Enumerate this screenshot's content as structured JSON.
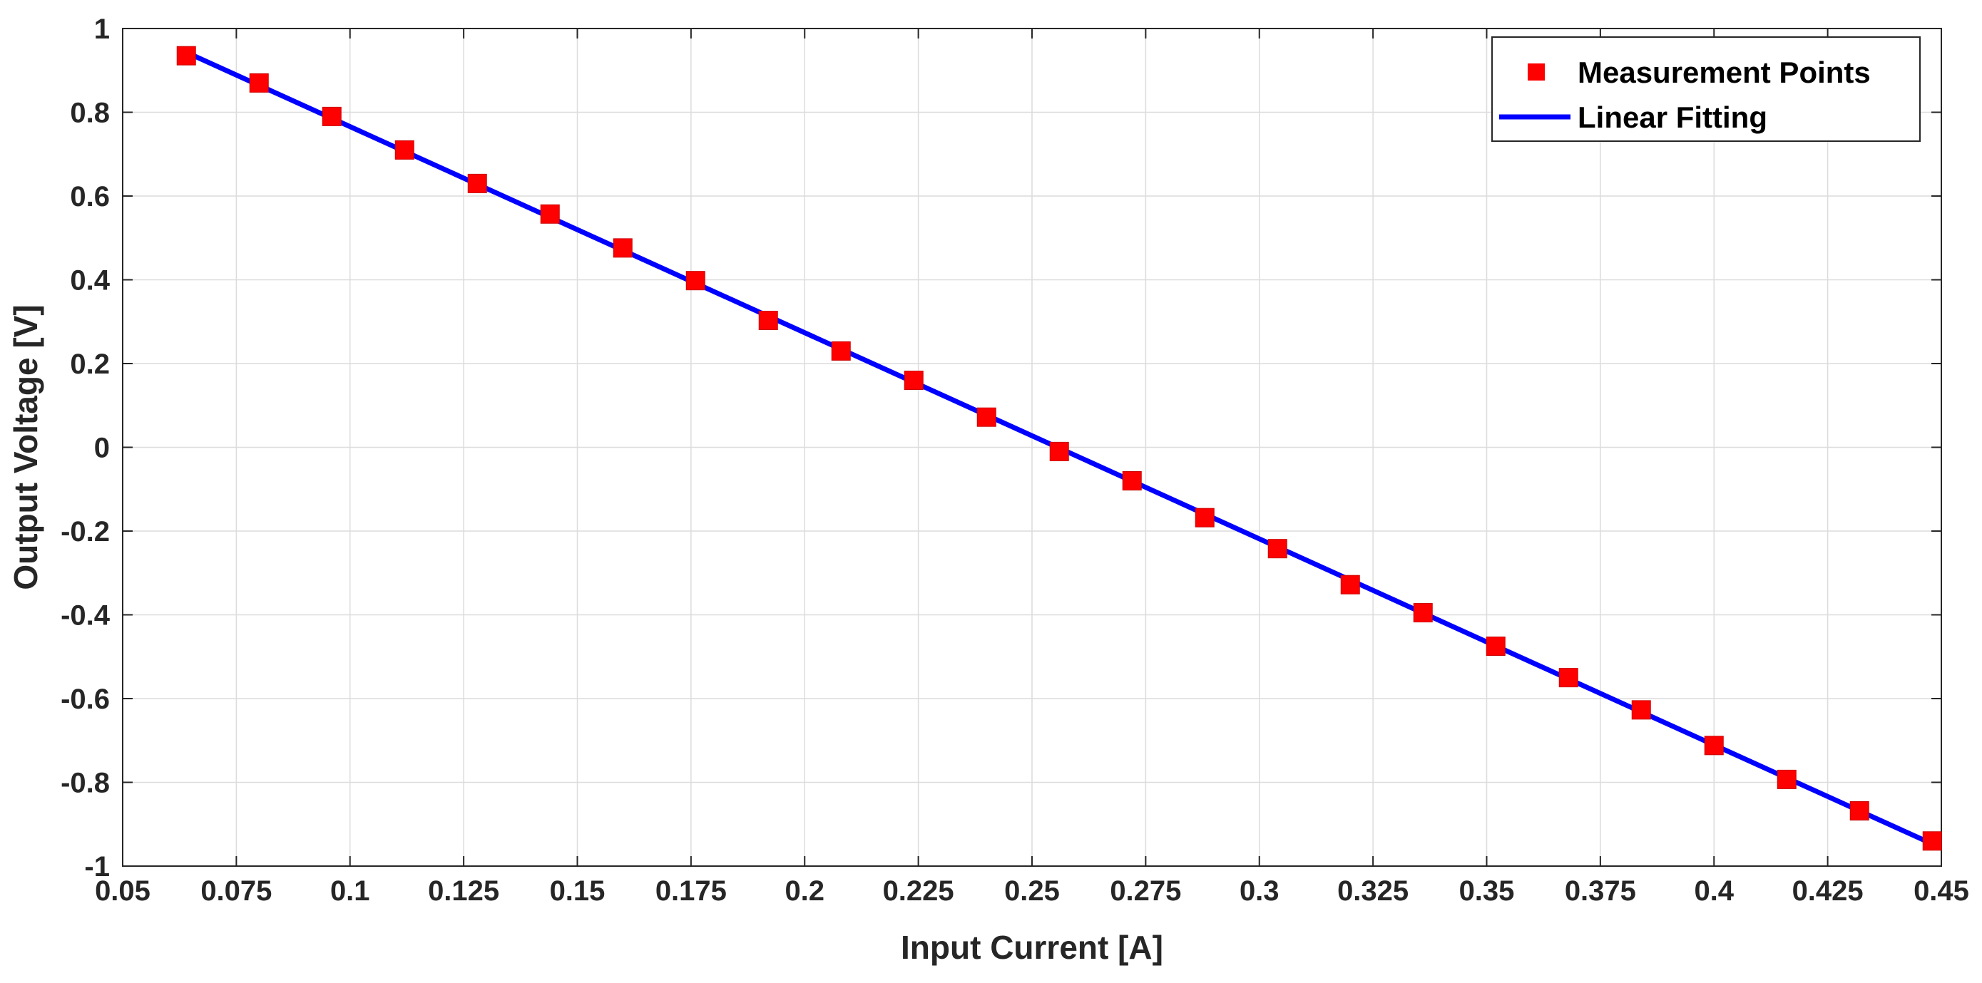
{
  "chart_data": {
    "type": "scatter",
    "xlabel": "Input Current [A]",
    "ylabel": "Output Voltage [V]",
    "xlim": [
      0.05,
      0.45
    ],
    "ylim": [
      -1,
      1
    ],
    "x_ticks": [
      0.05,
      0.075,
      0.1,
      0.125,
      0.15,
      0.175,
      0.2,
      0.225,
      0.25,
      0.275,
      0.3,
      0.325,
      0.35,
      0.375,
      0.4,
      0.425,
      0.45
    ],
    "x_tick_labels": [
      "0.05",
      "0.075",
      "0.1",
      "0.125",
      "0.15",
      "0.175",
      "0.2",
      "0.225",
      "0.25",
      "0.275",
      "0.3",
      "0.325",
      "0.35",
      "0.375",
      "0.4",
      "0.425",
      "0.45"
    ],
    "y_ticks": [
      1,
      0.8,
      0.6,
      0.4,
      0.2,
      0,
      -0.2,
      -0.4,
      -0.6,
      -0.8,
      -1
    ],
    "y_tick_labels": [
      "1",
      "0.8",
      "0.6",
      "0.4",
      "0.2",
      "0",
      "-0.2",
      "-0.4",
      "-0.6",
      "-0.8",
      "-1"
    ],
    "grid": true,
    "legend_position": "top-right",
    "series": [
      {
        "name": "Measurement Points",
        "kind": "markers",
        "marker": "square",
        "color": "#ff0000",
        "x": [
          0.064,
          0.08,
          0.096,
          0.112,
          0.128,
          0.144,
          0.16,
          0.176,
          0.192,
          0.208,
          0.224,
          0.24,
          0.256,
          0.272,
          0.288,
          0.304,
          0.32,
          0.336,
          0.352,
          0.368,
          0.384,
          0.4,
          0.416,
          0.432,
          0.448
        ],
        "y": [
          0.935,
          0.87,
          0.79,
          0.71,
          0.63,
          0.557,
          0.476,
          0.398,
          0.303,
          0.23,
          0.16,
          0.072,
          -0.01,
          -0.08,
          -0.168,
          -0.242,
          -0.328,
          -0.395,
          -0.475,
          -0.55,
          -0.627,
          -0.712,
          -0.793,
          -0.868,
          -0.94
        ]
      },
      {
        "name": "Linear Fitting",
        "kind": "line",
        "color": "#0000ff",
        "x": [
          0.064,
          0.448
        ],
        "y": [
          0.943,
          -0.947
        ]
      }
    ]
  }
}
